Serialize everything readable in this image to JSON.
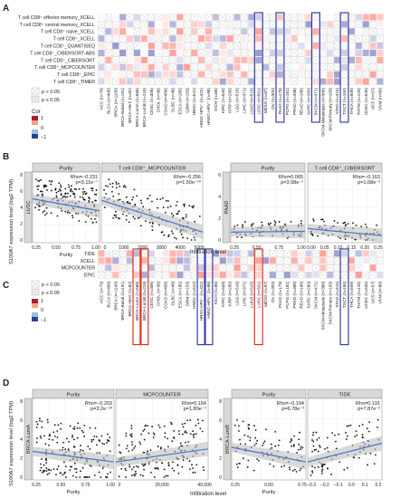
{
  "panels": {
    "a": "A",
    "b": "B",
    "c": "C",
    "d": "D"
  },
  "heatmapA": {
    "rows": [
      "T cell CD8⁺ effector memory_XCELL",
      "T cell CD8⁺ central memory_XCELL",
      "T cell CD8⁺ naive_XCELL",
      "T cell CD8⁺_XCELL",
      "T cell CD8⁺_QUANTISEQ",
      "T cell CD8⁺_CIBERSORT-ABS",
      "T cell CD8⁺_CIBERSORT",
      "T cell CD8⁺_MCPCOUNTER",
      "T cell CD8⁺_EPIC",
      "T cell CD8⁺_TIMER"
    ],
    "cols": [
      "ACC (n=79)",
      "BLCA (n=408)",
      "BRCA (n=1100)",
      "BRCA-Basal (n=191)",
      "BRCA-Her2 (n=82)",
      "BRCA-LumA (n=568)",
      "BRCA-LumB (n=219)",
      "CESC (n=306)",
      "CHOL (n=36)",
      "COAD (n=458)",
      "DLBC (n=48)",
      "ESCA (n=185)",
      "GBM (n=153)",
      "HNSC (n=522)",
      "HNSC-HPV⁻ (n=422)",
      "HNSC-HPV⁺ (n=98)",
      "KICH (n=66)",
      "KIRC (n=533)",
      "KIRP (n=290)",
      "LGG (n=516)",
      "LIHC (n=371)",
      "LUAD (n=515)",
      "LUSC (n=501)",
      "MESO (n=87)",
      "OV (n=303)",
      "PAAD (n=179)",
      "PCPG (n=181)",
      "PRAD (n=498)",
      "READ (n=166)",
      "SARC (n=260)",
      "SKCM (n=471)",
      "SKCM-Metastasis (n=368)",
      "SKCM-Primary (n=103)",
      "STAD (n=415)",
      "TGCT (n=150)",
      "THCA (n=509)",
      "THYM (n=120)",
      "UCEC (n=545)",
      "UCS (n=57)",
      "UVM (n=80)"
    ]
  },
  "legend": {
    "sig1": "p > 0.05",
    "sig2": "p ≤ 0.05",
    "cor": "Cor",
    "max": "1",
    "mid": "0",
    "min": "−1"
  },
  "heatmapC": {
    "rows": [
      "TIDE",
      "XCELL",
      "MCPCOUNTER",
      "EPIC"
    ],
    "cols": [
      "ACC (n=79)",
      "BLCA (n=408)",
      "BRCA (n=1100)",
      "BRCA-Basal (n=191)",
      "BRCA-Her2 (n=82)",
      "BRCA-LumA (n=568)",
      "BRCA-LumB (n=219)",
      "CESC (n=306)",
      "CHOL (n=36)",
      "COAD (n=458)",
      "DLBC (n=48)",
      "ESCA (n=185)",
      "GBM (n=153)",
      "HNSC (n=522)",
      "HNSC-HPV⁻ (n=422)",
      "HNSC-HPV⁺ (n=98)",
      "KICH (n=66)",
      "KIRC (n=533)",
      "KIRP (n=290)",
      "LGG (n=516)",
      "LIHC (n=371)",
      "LUAD (n=515)",
      "LUSC (n=501)",
      "MESO (n=87)",
      "OV (n=303)",
      "PAAD (n=179)",
      "PCPG (n=181)",
      "PRAD (n=498)",
      "READ (n=166)",
      "SARC (n=260)",
      "SKCM (n=471)",
      "SKCM-Metastasis (n=368)",
      "SKCM-Primary (n=103)",
      "STAD (n=415)",
      "TGCT (n=150)",
      "THCA (n=509)",
      "THYM (n=120)",
      "UCEC (n=545)",
      "UCS (n=57)",
      "UVM (n=80)"
    ]
  },
  "panelB": {
    "ylabel": "S100A7 expression level (log2 TPM)",
    "xlabel": "Infiltration level",
    "left": {
      "rowlabel": "LUSC",
      "plots": [
        {
          "strip": "Purity",
          "rho": "Rho=−0.231",
          "p": "p=3.11e⁻⁷",
          "ticks": [
            "0.25",
            "0.50",
            "0.75",
            "1.00"
          ],
          "xlabel": "Purity"
        },
        {
          "strip": "T cell CD8⁺_MCPCOUNTER",
          "rho": "Rho=−0.256",
          "p": "p=1.50e⁻¹⁰",
          "ticks": [
            "0",
            "1000",
            "2000",
            "3000",
            "4000",
            "5000"
          ],
          "xlabel": ""
        }
      ],
      "yticks": [
        "0",
        "2",
        "4",
        "6",
        "8"
      ]
    },
    "right": {
      "rowlabel": "PAAD",
      "plots": [
        {
          "strip": "Purity",
          "rho": "Rho=0.065",
          "p": "p=3.98e⁻¹",
          "ticks": [
            "0.25",
            "0.50",
            "0.75",
            "1.00"
          ]
        },
        {
          "strip": "T cell CD8⁺_CIBERSORT",
          "rho": "Rho=−0.163",
          "p": "p=1.68e⁻²",
          "ticks": [
            "0.00",
            "0.05",
            "0.10",
            "0.15",
            "0.20",
            "0.25"
          ]
        }
      ],
      "yticks": [
        "0",
        "2",
        "4",
        "6"
      ]
    }
  },
  "panelD": {
    "ylabel": "S100A7 expression level (log2 TPM)",
    "xlabel": "Infiltration level",
    "left": {
      "rowlabel": "BRCA-LumA",
      "plots": [
        {
          "strip": "Purity",
          "rho": "Rho=−0.203",
          "p": "p=3.2e⁻¹⁰",
          "ticks": [
            "0.25",
            "0.50",
            "0.75",
            "1.00"
          ],
          "xlabel": "Purity"
        },
        {
          "strip": "MCPCOUNTER",
          "rho": "Rho=0.164",
          "p": "p=1.80e⁻⁴",
          "ticks": [
            "0",
            "20,000",
            "40,000"
          ],
          "xlabel": ""
        }
      ],
      "yticks": [
        "0",
        "2",
        "4",
        "6",
        "8"
      ]
    },
    "right": {
      "rowlabel": "BRCA-LumB",
      "plots": [
        {
          "strip": "Purity",
          "rho": "Rho=−0.194",
          "p": "p=6.78e⁻³",
          "ticks": [
            "0.25",
            "0.50",
            "0.75"
          ],
          "xlabel": "Purity"
        },
        {
          "strip": "TIDE",
          "rho": "Rho=0.191",
          "p": "p=7.87e⁻³",
          "ticks": [
            "−0.3",
            "−0.2",
            "−0.1",
            "0.0",
            "0.1",
            "0.2"
          ],
          "xlabel": ""
        }
      ],
      "yticks": [
        "0",
        "2",
        "4",
        "6",
        "8"
      ]
    }
  },
  "colors": {
    "red": "#d73027",
    "blue": "#3b3ea8",
    "grid": "#e6e6e6",
    "strip": "#d9d9d9",
    "dot": "#111111",
    "line": "#4a74c9",
    "ci": "#bfbfbf",
    "rho": "#e0321e",
    "box_red": "#e0321e",
    "box_blue": "#3b3ea8"
  }
}
